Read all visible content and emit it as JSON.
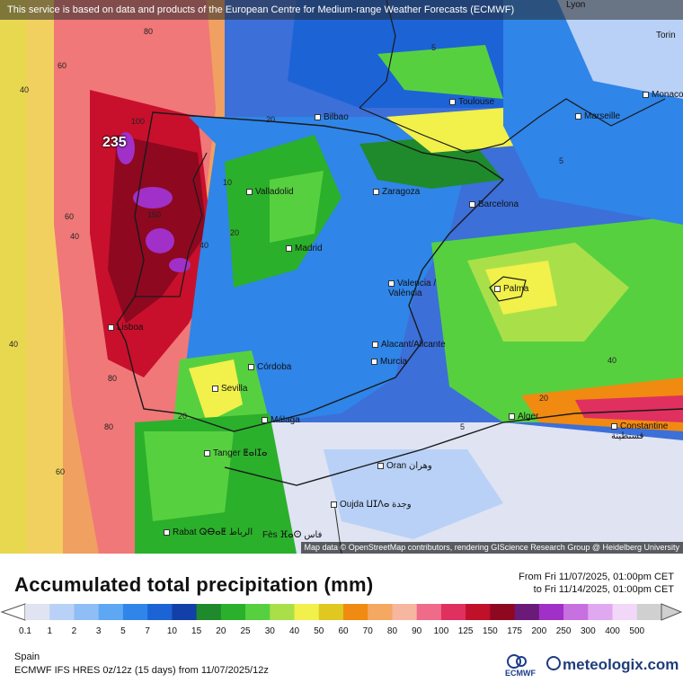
{
  "header": {
    "notice": "This service is based on data and products of the European Centre for Medium-range Weather Forecasts (ECMWF)"
  },
  "attribution": "Map data © OpenStreetMap contributors, rendering GIScience Research Group @ Heidelberg University",
  "map": {
    "max_label": "235",
    "cities": [
      {
        "name": "Bilbao"
      },
      {
        "name": "Toulouse"
      },
      {
        "name": "Marseille"
      },
      {
        "name": "Monaco"
      },
      {
        "name": "Torin"
      },
      {
        "name": "Lyon"
      },
      {
        "name": "Valladolid"
      },
      {
        "name": "Zaragoza"
      },
      {
        "name": "Barcelona"
      },
      {
        "name": "Madrid"
      },
      {
        "name": "Valencia / València"
      },
      {
        "name": "Palma"
      },
      {
        "name": "Lisboa"
      },
      {
        "name": "Alacant/Alicante"
      },
      {
        "name": "Murcia"
      },
      {
        "name": "Córdoba"
      },
      {
        "name": "Sevilla"
      },
      {
        "name": "Málaga"
      },
      {
        "name": "Tanger ⵟⴰⵏⵊⴰ"
      },
      {
        "name": "Alger"
      },
      {
        "name": "Constantine قسنطينة"
      },
      {
        "name": "Oran وهران"
      },
      {
        "name": "Oujda ⵡⵊⴷⴰ وجدة"
      },
      {
        "name": "Rabat ⵕⴱⴰⵟ الرباط"
      },
      {
        "name": "Fès ⴼⴰⵙ فاس"
      }
    ],
    "contour_values": [
      "80",
      "60",
      "40",
      "20",
      "100",
      "5",
      "150",
      "40",
      "60",
      "40",
      "20",
      "10",
      "5",
      "80",
      "60",
      "40",
      "40",
      "20",
      "80",
      "20",
      "5"
    ]
  },
  "legend": {
    "title": "Accumulated total precipitation (mm)",
    "from": "From Fri 11/07/2025, 01:00pm CET",
    "to": "to Fri 11/14/2025, 01:00pm CET",
    "ticks": [
      "0.1",
      "1",
      "2",
      "3",
      "5",
      "7",
      "10",
      "15",
      "20",
      "25",
      "30",
      "40",
      "50",
      "60",
      "70",
      "80",
      "90",
      "100",
      "125",
      "150",
      "175",
      "200",
      "250",
      "300",
      "400",
      "500"
    ],
    "colors": [
      "#dfe3f2",
      "#b9d1f7",
      "#8fbdf5",
      "#5ea7f2",
      "#2f85e8",
      "#1c63d6",
      "#123fa8",
      "#1f8a2b",
      "#2bb02b",
      "#57d040",
      "#a9e04a",
      "#f2f04a",
      "#e0c820",
      "#f08a10",
      "#f5a860",
      "#f6b6a0",
      "#f06a8a",
      "#e03060",
      "#c0102a",
      "#8e0820",
      "#6a1a78",
      "#a030c8",
      "#c870e0",
      "#e0a8f0",
      "#f2d8f8",
      "#d0d0d0"
    ]
  },
  "footer": {
    "region": "Spain",
    "model": "ECMWF IFS HRES 0z/12z (15 days) from 11/07/2025/12z",
    "ecmwf_logo": "ECMWF",
    "meteologix_logo": "meteologix.com"
  }
}
